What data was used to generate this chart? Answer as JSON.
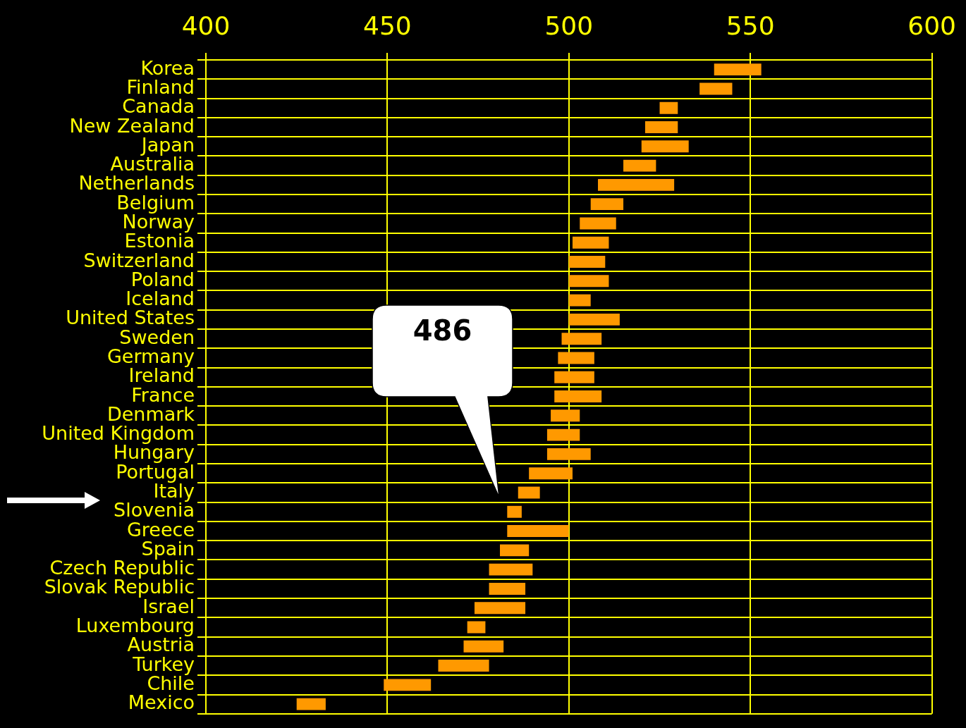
{
  "chart_data": {
    "type": "bar",
    "orientation": "horizontal",
    "categories": [
      "Korea",
      "Finland",
      "Canada",
      "New Zealand",
      "Japan",
      "Australia",
      "Netherlands",
      "Belgium",
      "Norway",
      "Estonia",
      "Switzerland",
      "Poland",
      "Iceland",
      "United States",
      "Sweden",
      "Germany",
      "Ireland",
      "France",
      "Denmark",
      "United Kingdom",
      "Hungary",
      "Portugal",
      "Italy",
      "Slovenia",
      "Greece",
      "Spain",
      "Czech Republic",
      "Slovak Republic",
      "Israel",
      "Luxembourg",
      "Austria",
      "Turkey",
      "Chile",
      "Mexico"
    ],
    "base": [
      540,
      536,
      525,
      521,
      520,
      515,
      508,
      506,
      503,
      501,
      500,
      500,
      500,
      500,
      498,
      497,
      496,
      496,
      495,
      494,
      494,
      489,
      486,
      483,
      483,
      481,
      478,
      478,
      474,
      472,
      471,
      464,
      449,
      425
    ],
    "values": [
      13,
      9,
      5,
      9,
      13,
      9,
      21,
      9,
      10,
      10,
      10,
      11,
      6,
      14,
      11,
      10,
      11,
      13,
      8,
      9,
      12,
      12,
      6,
      4,
      17,
      8,
      12,
      10,
      14,
      5,
      11,
      14,
      13,
      8
    ],
    "color": "#ff9900",
    "xlim": [
      400,
      600
    ],
    "xticks": [
      400,
      450,
      500,
      550,
      600
    ],
    "grid": true,
    "annotations": [
      "486"
    ]
  }
}
